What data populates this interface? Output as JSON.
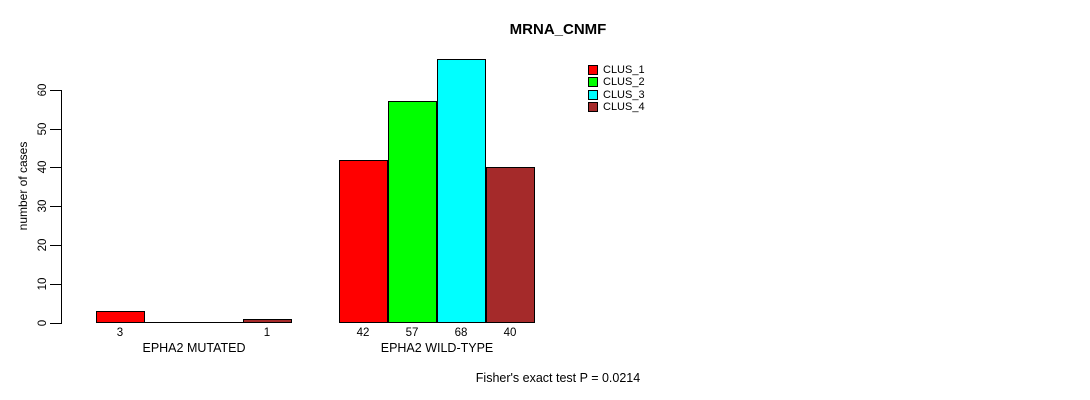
{
  "chart_data": {
    "type": "bar",
    "title": "MRNA_CNMF",
    "xlabel": "",
    "ylabel": "number of cases",
    "ylim": [
      0,
      68
    ],
    "yticks": [
      0,
      10,
      20,
      30,
      40,
      50,
      60
    ],
    "grid": false,
    "legend_position": "top-right-outside-plot",
    "categories": [
      "EPHA2 MUTATED",
      "EPHA2 WILD-TYPE"
    ],
    "series": [
      {
        "name": "CLUS_1",
        "color": "#FF0000",
        "values": [
          3,
          42
        ]
      },
      {
        "name": "CLUS_2",
        "color": "#00FF00",
        "values": [
          0,
          57
        ]
      },
      {
        "name": "CLUS_3",
        "color": "#00FFFF",
        "values": [
          0,
          68
        ]
      },
      {
        "name": "CLUS_4",
        "color": "#A52A2A",
        "values": [
          1,
          40
        ]
      }
    ],
    "bar_value_labels_shown": [
      "3",
      "",
      "",
      "1",
      "42",
      "57",
      "68",
      "40"
    ],
    "annotation": "Fisher's exact test P = 0.0214"
  },
  "colors": {
    "background": "#FFFFFF",
    "axis": "#000000",
    "text": "#000000",
    "clus_1": "#FF0000",
    "clus_2": "#00FF00",
    "clus_3": "#00FFFF",
    "clus_4": "#A52A2A"
  }
}
